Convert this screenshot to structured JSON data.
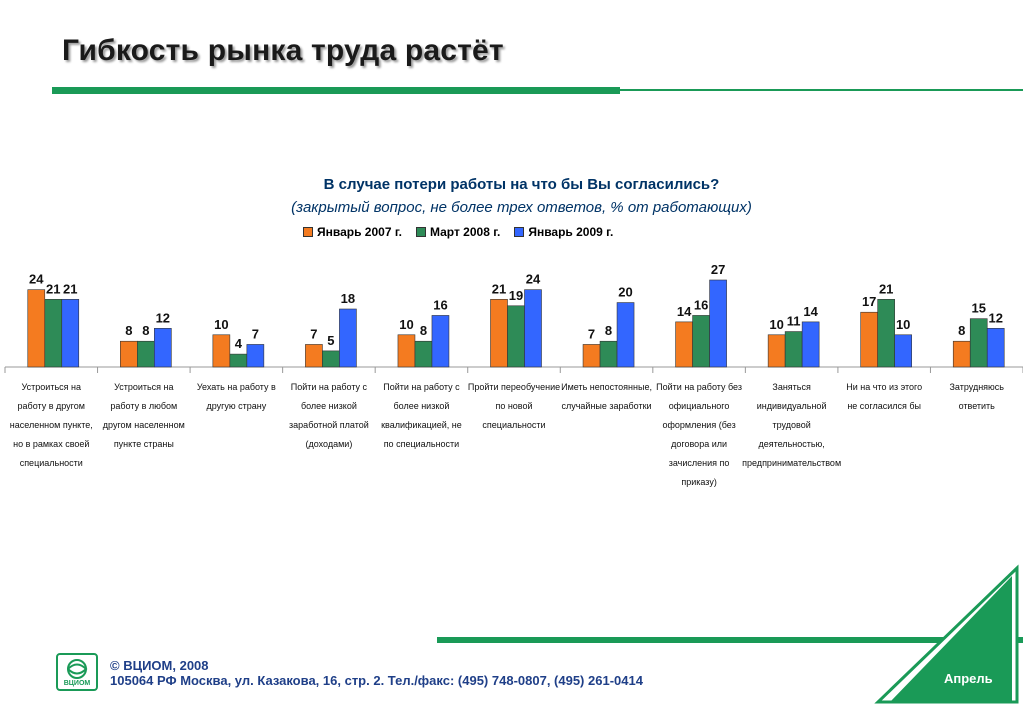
{
  "slide": {
    "title": "Гибкость рынка труда растёт",
    "question": "В случае потери работы на что бы Вы согласились?",
    "subtitle": "(закрытый вопрос, не более трех ответов, % от работающих)",
    "footer": {
      "copyright": "© ВЦИОМ, 2008",
      "address": "105064 РФ Москва, ул. Казакова, 16, стр. 2.  Тел./факс: (495) 748-0807, (495) 261-0414",
      "logo_text": "ВЦИОМ",
      "month": "Апрель"
    },
    "colors": {
      "accent_green": "#1a9a57",
      "title_blue": "#003366"
    }
  },
  "chart_data": {
    "type": "bar",
    "title": "В случае потери работы на что бы Вы согласились?",
    "subtitle": "(закрытый вопрос, не более трех ответов, % от работающих)",
    "legend_position": "top",
    "grid": false,
    "categories": [
      "Устроиться на работу в другом населенном пункте, но в рамках своей специальности",
      "Устроиться на работу в любом другом населенном пункте страны",
      "Уехать на работу в другую страну",
      "Пойти на работу с более низкой заработной платой (доходами)",
      "Пойти на работу с более низкой квалификацией, не по специальности",
      "Пройти переобучение по новой специальности",
      "Иметь непостоянные, случайные заработки",
      "Пойти на работу без официального оформления (без договора или зачисления по приказу)",
      "Заняться индивидуальной трудовой деятельностью, предпринимательством",
      "Ни на что из этого не согласился бы",
      "Затрудняюсь ответить"
    ],
    "series": [
      {
        "name": "Январь 2007 г.",
        "color": "#f47b20",
        "values": [
          24,
          8,
          10,
          7,
          10,
          21,
          7,
          14,
          10,
          17,
          8
        ]
      },
      {
        "name": "Март 2008 г.",
        "color": "#2e8b57",
        "values": [
          21,
          8,
          4,
          5,
          8,
          19,
          8,
          16,
          11,
          21,
          15
        ]
      },
      {
        "name": "Январь 2009 г.",
        "color": "#3366ff",
        "values": [
          21,
          12,
          7,
          18,
          16,
          24,
          20,
          27,
          14,
          10,
          12
        ]
      }
    ],
    "ylim": [
      0,
      30
    ]
  }
}
